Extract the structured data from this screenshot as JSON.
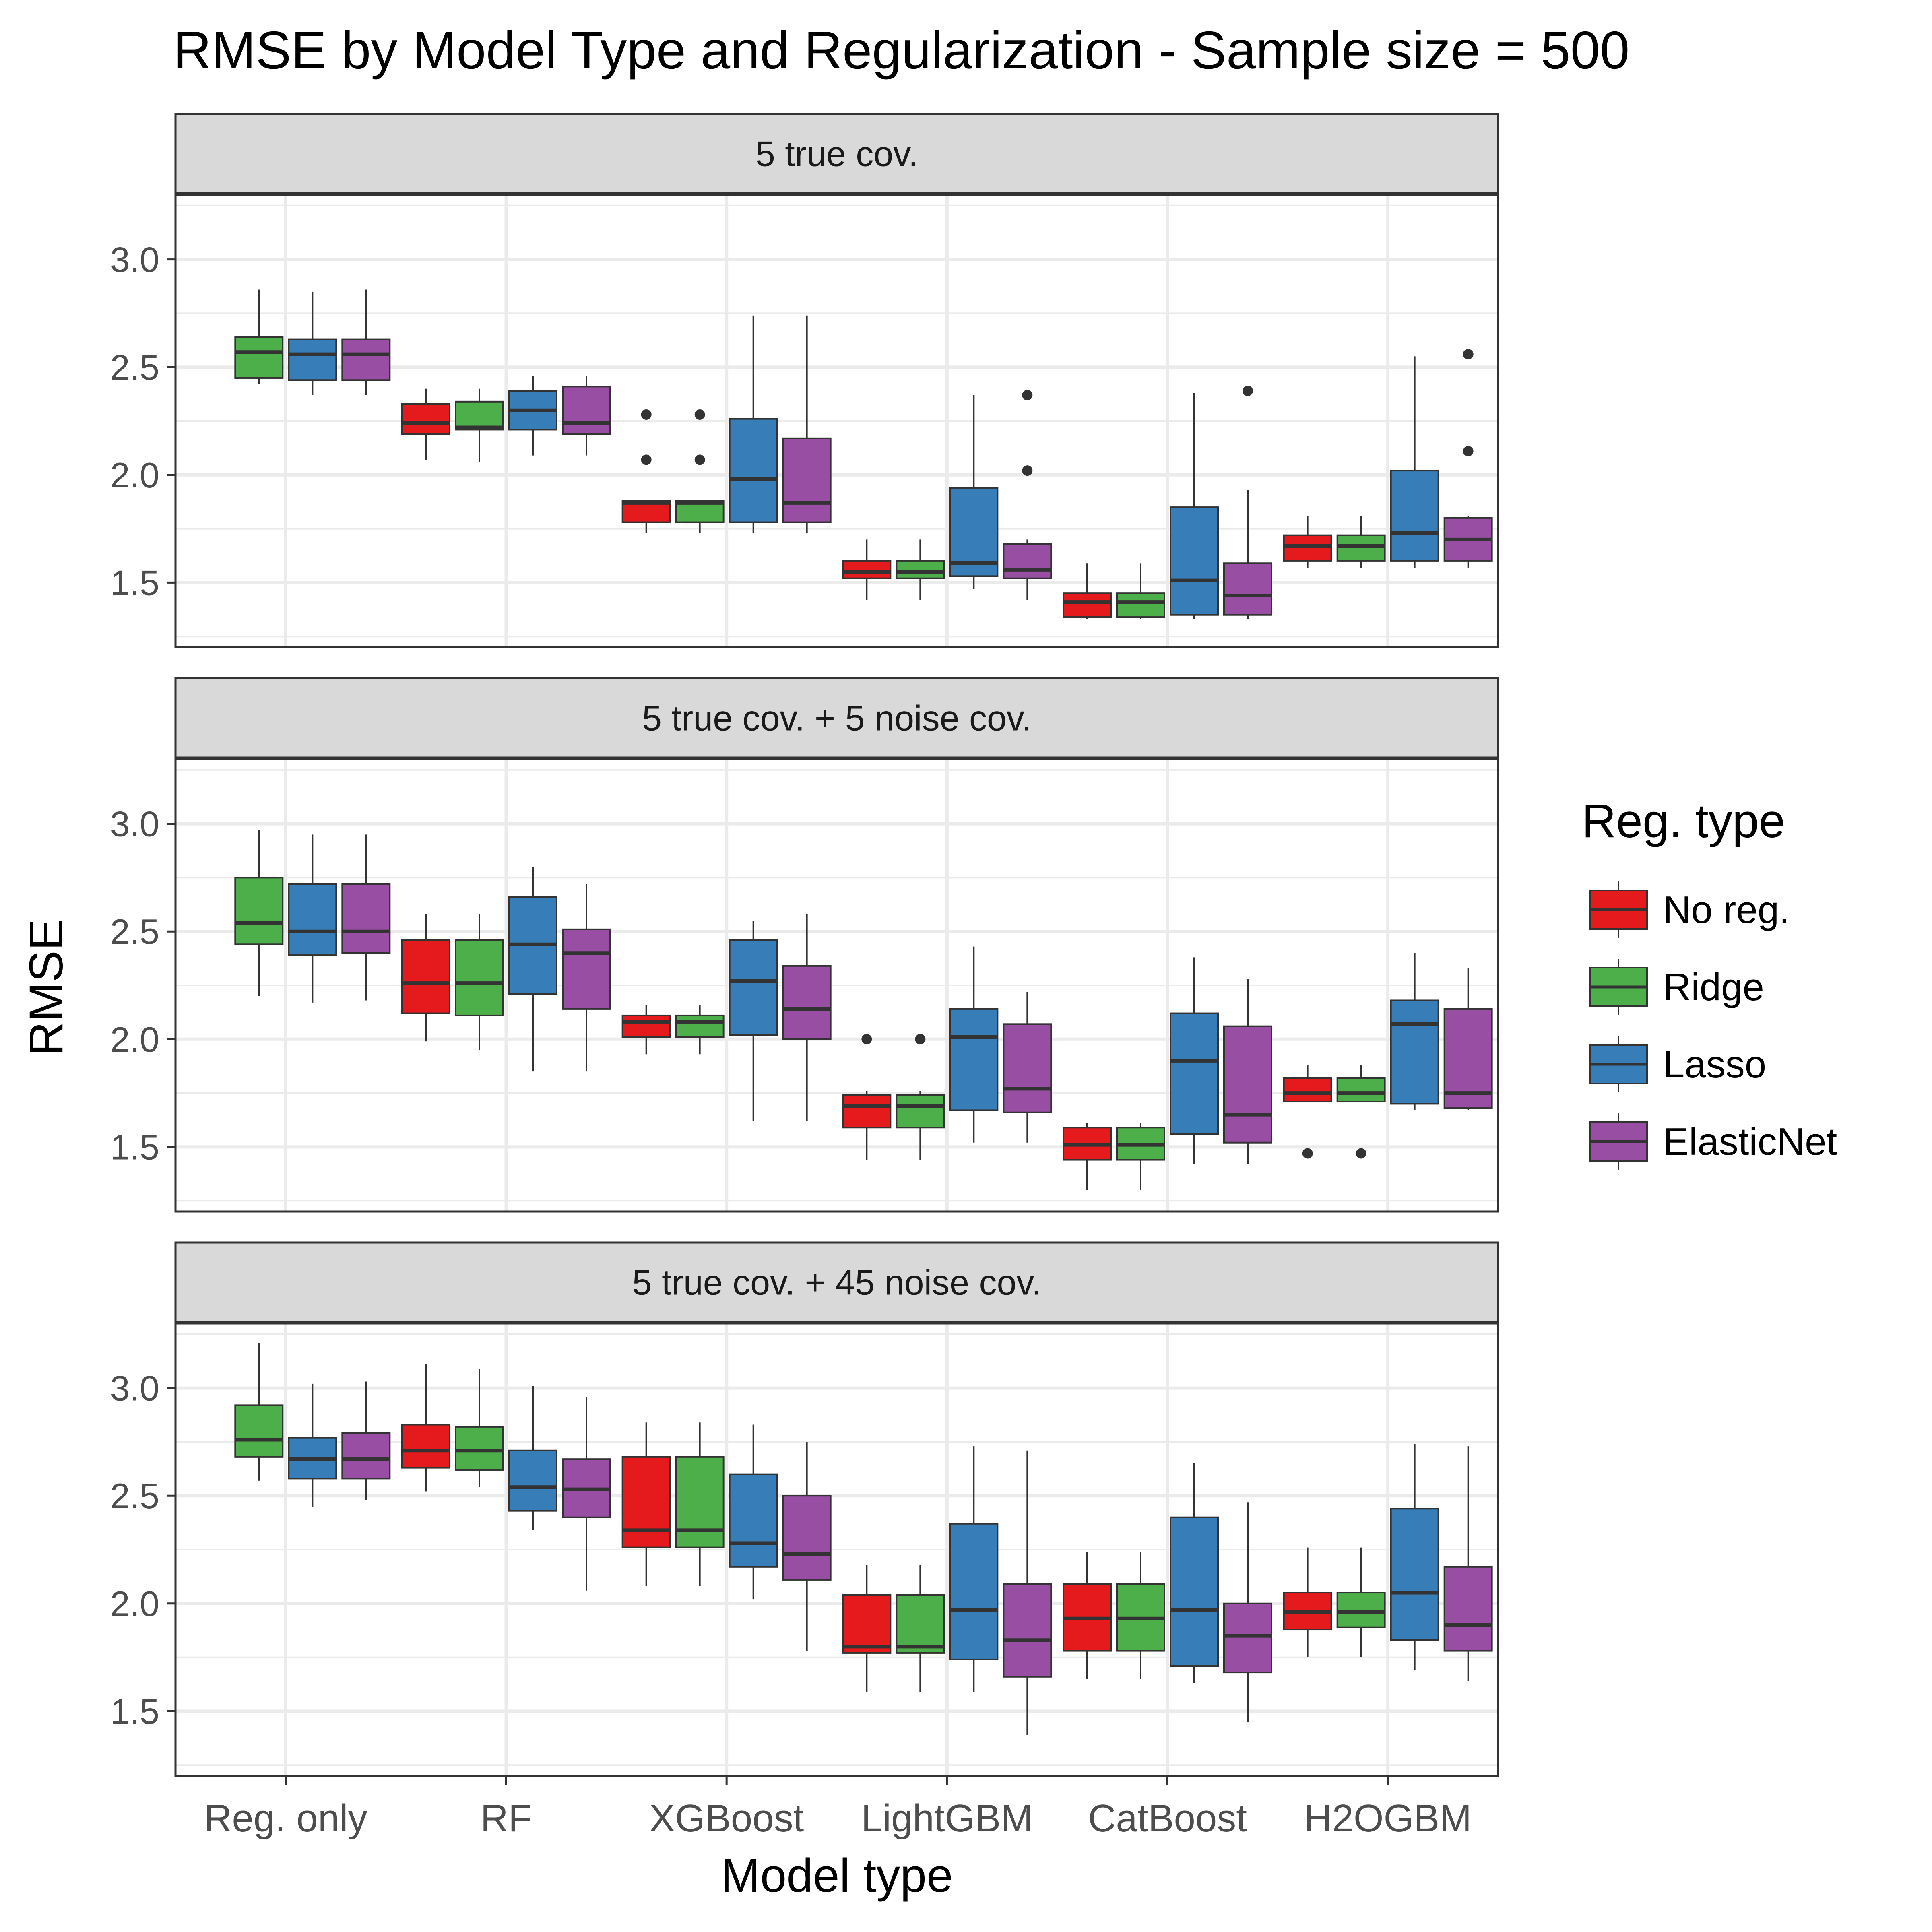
{
  "chart_data": {
    "type": "boxplot",
    "title": "RMSE by Model Type and Regularization - Sample size = 500",
    "xlabel": "Model type",
    "ylabel": "RMSE",
    "categories": [
      "Reg. only",
      "RF",
      "XGBoost",
      "LightGBM",
      "CatBoost",
      "H2OGBM"
    ],
    "ylim": [
      1.2,
      3.3
    ],
    "yticks": [
      1.5,
      2.0,
      2.5,
      3.0
    ],
    "ytick_labels": [
      "1.5",
      "2.0",
      "2.5",
      "3.0"
    ],
    "grid": true,
    "legend": {
      "title": "Reg. type",
      "position": "right",
      "entries": [
        {
          "name": "No reg.",
          "color": "#e41a1c"
        },
        {
          "name": "Ridge",
          "color": "#4daf4a"
        },
        {
          "name": "Lasso",
          "color": "#377eb8"
        },
        {
          "name": "ElasticNet",
          "color": "#984ea3"
        }
      ]
    },
    "panels": [
      {
        "label": "5 true cov.",
        "groups": [
          {
            "category": "Reg. only",
            "series": "Ridge",
            "min": 2.42,
            "q1": 2.45,
            "median": 2.57,
            "q3": 2.64,
            "max": 2.86,
            "outliers": []
          },
          {
            "category": "Reg. only",
            "series": "Lasso",
            "min": 2.37,
            "q1": 2.44,
            "median": 2.56,
            "q3": 2.63,
            "max": 2.85,
            "outliers": []
          },
          {
            "category": "Reg. only",
            "series": "ElasticNet",
            "min": 2.37,
            "q1": 2.44,
            "median": 2.56,
            "q3": 2.63,
            "max": 2.86,
            "outliers": []
          },
          {
            "category": "RF",
            "series": "No reg.",
            "min": 2.07,
            "q1": 2.19,
            "median": 2.24,
            "q3": 2.33,
            "max": 2.4,
            "outliers": []
          },
          {
            "category": "RF",
            "series": "Ridge",
            "min": 2.06,
            "q1": 2.21,
            "median": 2.22,
            "q3": 2.34,
            "max": 2.4,
            "outliers": []
          },
          {
            "category": "RF",
            "series": "Lasso",
            "min": 2.09,
            "q1": 2.21,
            "median": 2.3,
            "q3": 2.39,
            "max": 2.46,
            "outliers": []
          },
          {
            "category": "RF",
            "series": "ElasticNet",
            "min": 2.09,
            "q1": 2.19,
            "median": 2.24,
            "q3": 2.41,
            "max": 2.46,
            "outliers": []
          },
          {
            "category": "XGBoost",
            "series": "No reg.",
            "min": 1.73,
            "q1": 1.78,
            "median": 1.87,
            "q3": 1.88,
            "max": 1.88,
            "outliers": [
              2.07,
              2.28
            ]
          },
          {
            "category": "XGBoost",
            "series": "Ridge",
            "min": 1.73,
            "q1": 1.78,
            "median": 1.87,
            "q3": 1.88,
            "max": 1.88,
            "outliers": [
              2.07,
              2.28
            ]
          },
          {
            "category": "XGBoost",
            "series": "Lasso",
            "min": 1.73,
            "q1": 1.78,
            "median": 1.98,
            "q3": 2.26,
            "max": 2.74,
            "outliers": []
          },
          {
            "category": "XGBoost",
            "series": "ElasticNet",
            "min": 1.73,
            "q1": 1.78,
            "median": 1.87,
            "q3": 2.17,
            "max": 2.74,
            "outliers": []
          },
          {
            "category": "LightGBM",
            "series": "No reg.",
            "min": 1.42,
            "q1": 1.52,
            "median": 1.55,
            "q3": 1.6,
            "max": 1.7,
            "outliers": []
          },
          {
            "category": "LightGBM",
            "series": "Ridge",
            "min": 1.42,
            "q1": 1.52,
            "median": 1.55,
            "q3": 1.6,
            "max": 1.7,
            "outliers": []
          },
          {
            "category": "LightGBM",
            "series": "Lasso",
            "min": 1.47,
            "q1": 1.53,
            "median": 1.59,
            "q3": 1.94,
            "max": 2.37,
            "outliers": []
          },
          {
            "category": "LightGBM",
            "series": "ElasticNet",
            "min": 1.42,
            "q1": 1.52,
            "median": 1.56,
            "q3": 1.68,
            "max": 1.7,
            "outliers": [
              2.02,
              2.37
            ]
          },
          {
            "category": "CatBoost",
            "series": "No reg.",
            "min": 1.33,
            "q1": 1.34,
            "median": 1.41,
            "q3": 1.45,
            "max": 1.59,
            "outliers": []
          },
          {
            "category": "CatBoost",
            "series": "Ridge",
            "min": 1.33,
            "q1": 1.34,
            "median": 1.41,
            "q3": 1.45,
            "max": 1.59,
            "outliers": []
          },
          {
            "category": "CatBoost",
            "series": "Lasso",
            "min": 1.33,
            "q1": 1.35,
            "median": 1.51,
            "q3": 1.85,
            "max": 2.38,
            "outliers": []
          },
          {
            "category": "CatBoost",
            "series": "ElasticNet",
            "min": 1.33,
            "q1": 1.35,
            "median": 1.44,
            "q3": 1.59,
            "max": 1.93,
            "outliers": [
              2.39
            ]
          },
          {
            "category": "H2OGBM",
            "series": "No reg.",
            "min": 1.57,
            "q1": 1.6,
            "median": 1.67,
            "q3": 1.72,
            "max": 1.81,
            "outliers": []
          },
          {
            "category": "H2OGBM",
            "series": "Ridge",
            "min": 1.57,
            "q1": 1.6,
            "median": 1.67,
            "q3": 1.72,
            "max": 1.81,
            "outliers": []
          },
          {
            "category": "H2OGBM",
            "series": "Lasso",
            "min": 1.57,
            "q1": 1.6,
            "median": 1.73,
            "q3": 2.02,
            "max": 2.55,
            "outliers": []
          },
          {
            "category": "H2OGBM",
            "series": "ElasticNet",
            "min": 1.57,
            "q1": 1.6,
            "median": 1.7,
            "q3": 1.8,
            "max": 1.81,
            "outliers": [
              2.11,
              2.56
            ]
          }
        ]
      },
      {
        "label": "5 true cov. + 5 noise cov.",
        "groups": [
          {
            "category": "Reg. only",
            "series": "Ridge",
            "min": 2.2,
            "q1": 2.44,
            "median": 2.54,
            "q3": 2.75,
            "max": 2.97,
            "outliers": []
          },
          {
            "category": "Reg. only",
            "series": "Lasso",
            "min": 2.17,
            "q1": 2.39,
            "median": 2.5,
            "q3": 2.72,
            "max": 2.95,
            "outliers": []
          },
          {
            "category": "Reg. only",
            "series": "ElasticNet",
            "min": 2.18,
            "q1": 2.4,
            "median": 2.5,
            "q3": 2.72,
            "max": 2.95,
            "outliers": []
          },
          {
            "category": "RF",
            "series": "No reg.",
            "min": 1.99,
            "q1": 2.12,
            "median": 2.26,
            "q3": 2.46,
            "max": 2.58,
            "outliers": []
          },
          {
            "category": "RF",
            "series": "Ridge",
            "min": 1.95,
            "q1": 2.11,
            "median": 2.26,
            "q3": 2.46,
            "max": 2.58,
            "outliers": []
          },
          {
            "category": "RF",
            "series": "Lasso",
            "min": 1.85,
            "q1": 2.21,
            "median": 2.44,
            "q3": 2.66,
            "max": 2.8,
            "outliers": []
          },
          {
            "category": "RF",
            "series": "ElasticNet",
            "min": 1.85,
            "q1": 2.14,
            "median": 2.4,
            "q3": 2.51,
            "max": 2.72,
            "outliers": []
          },
          {
            "category": "XGBoost",
            "series": "No reg.",
            "min": 1.93,
            "q1": 2.01,
            "median": 2.08,
            "q3": 2.11,
            "max": 2.16,
            "outliers": []
          },
          {
            "category": "XGBoost",
            "series": "Ridge",
            "min": 1.93,
            "q1": 2.01,
            "median": 2.08,
            "q3": 2.11,
            "max": 2.16,
            "outliers": []
          },
          {
            "category": "XGBoost",
            "series": "Lasso",
            "min": 1.62,
            "q1": 2.02,
            "median": 2.27,
            "q3": 2.46,
            "max": 2.55,
            "outliers": []
          },
          {
            "category": "XGBoost",
            "series": "ElasticNet",
            "min": 1.62,
            "q1": 2.0,
            "median": 2.14,
            "q3": 2.34,
            "max": 2.58,
            "outliers": []
          },
          {
            "category": "LightGBM",
            "series": "No reg.",
            "min": 1.44,
            "q1": 1.59,
            "median": 1.69,
            "q3": 1.74,
            "max": 1.76,
            "outliers": [
              2.0
            ]
          },
          {
            "category": "LightGBM",
            "series": "Ridge",
            "min": 1.44,
            "q1": 1.59,
            "median": 1.69,
            "q3": 1.74,
            "max": 1.76,
            "outliers": [
              2.0
            ]
          },
          {
            "category": "LightGBM",
            "series": "Lasso",
            "min": 1.52,
            "q1": 1.67,
            "median": 2.01,
            "q3": 2.14,
            "max": 2.43,
            "outliers": []
          },
          {
            "category": "LightGBM",
            "series": "ElasticNet",
            "min": 1.52,
            "q1": 1.66,
            "median": 1.77,
            "q3": 2.07,
            "max": 2.22,
            "outliers": []
          },
          {
            "category": "CatBoost",
            "series": "No reg.",
            "min": 1.3,
            "q1": 1.44,
            "median": 1.51,
            "q3": 1.59,
            "max": 1.61,
            "outliers": []
          },
          {
            "category": "CatBoost",
            "series": "Ridge",
            "min": 1.3,
            "q1": 1.44,
            "median": 1.51,
            "q3": 1.59,
            "max": 1.61,
            "outliers": []
          },
          {
            "category": "CatBoost",
            "series": "Lasso",
            "min": 1.42,
            "q1": 1.56,
            "median": 1.9,
            "q3": 2.12,
            "max": 2.38,
            "outliers": []
          },
          {
            "category": "CatBoost",
            "series": "ElasticNet",
            "min": 1.42,
            "q1": 1.52,
            "median": 1.65,
            "q3": 2.06,
            "max": 2.28,
            "outliers": []
          },
          {
            "category": "H2OGBM",
            "series": "No reg.",
            "min": 1.71,
            "q1": 1.71,
            "median": 1.75,
            "q3": 1.82,
            "max": 1.88,
            "outliers": [
              1.47
            ]
          },
          {
            "category": "H2OGBM",
            "series": "Ridge",
            "min": 1.71,
            "q1": 1.71,
            "median": 1.75,
            "q3": 1.82,
            "max": 1.88,
            "outliers": [
              1.47
            ]
          },
          {
            "category": "H2OGBM",
            "series": "Lasso",
            "min": 1.67,
            "q1": 1.7,
            "median": 2.07,
            "q3": 2.18,
            "max": 2.4,
            "outliers": []
          },
          {
            "category": "H2OGBM",
            "series": "ElasticNet",
            "min": 1.67,
            "q1": 1.68,
            "median": 1.75,
            "q3": 2.14,
            "max": 2.33,
            "outliers": []
          }
        ]
      },
      {
        "label": "5 true cov. + 45 noise cov.",
        "groups": [
          {
            "category": "Reg. only",
            "series": "Ridge",
            "min": 2.57,
            "q1": 2.68,
            "median": 2.76,
            "q3": 2.92,
            "max": 3.21,
            "outliers": []
          },
          {
            "category": "Reg. only",
            "series": "Lasso",
            "min": 2.45,
            "q1": 2.58,
            "median": 2.67,
            "q3": 2.77,
            "max": 3.02,
            "outliers": []
          },
          {
            "category": "Reg. only",
            "series": "ElasticNet",
            "min": 2.48,
            "q1": 2.58,
            "median": 2.67,
            "q3": 2.79,
            "max": 3.03,
            "outliers": []
          },
          {
            "category": "RF",
            "series": "No reg.",
            "min": 2.52,
            "q1": 2.63,
            "median": 2.71,
            "q3": 2.83,
            "max": 3.11,
            "outliers": []
          },
          {
            "category": "RF",
            "series": "Ridge",
            "min": 2.54,
            "q1": 2.62,
            "median": 2.71,
            "q3": 2.82,
            "max": 3.09,
            "outliers": []
          },
          {
            "category": "RF",
            "series": "Lasso",
            "min": 2.34,
            "q1": 2.43,
            "median": 2.54,
            "q3": 2.71,
            "max": 3.01,
            "outliers": []
          },
          {
            "category": "RF",
            "series": "ElasticNet",
            "min": 2.06,
            "q1": 2.4,
            "median": 2.53,
            "q3": 2.67,
            "max": 2.96,
            "outliers": []
          },
          {
            "category": "XGBoost",
            "series": "No reg.",
            "min": 2.08,
            "q1": 2.26,
            "median": 2.34,
            "q3": 2.68,
            "max": 2.84,
            "outliers": []
          },
          {
            "category": "XGBoost",
            "series": "Ridge",
            "min": 2.08,
            "q1": 2.26,
            "median": 2.34,
            "q3": 2.68,
            "max": 2.84,
            "outliers": []
          },
          {
            "category": "XGBoost",
            "series": "Lasso",
            "min": 2.02,
            "q1": 2.17,
            "median": 2.28,
            "q3": 2.6,
            "max": 2.83,
            "outliers": []
          },
          {
            "category": "XGBoost",
            "series": "ElasticNet",
            "min": 1.78,
            "q1": 2.11,
            "median": 2.23,
            "q3": 2.5,
            "max": 2.75,
            "outliers": []
          },
          {
            "category": "LightGBM",
            "series": "No reg.",
            "min": 1.59,
            "q1": 1.77,
            "median": 1.8,
            "q3": 2.04,
            "max": 2.18,
            "outliers": []
          },
          {
            "category": "LightGBM",
            "series": "Ridge",
            "min": 1.59,
            "q1": 1.77,
            "median": 1.8,
            "q3": 2.04,
            "max": 2.18,
            "outliers": []
          },
          {
            "category": "LightGBM",
            "series": "Lasso",
            "min": 1.59,
            "q1": 1.74,
            "median": 1.97,
            "q3": 2.37,
            "max": 2.73,
            "outliers": []
          },
          {
            "category": "LightGBM",
            "series": "ElasticNet",
            "min": 1.39,
            "q1": 1.66,
            "median": 1.83,
            "q3": 2.09,
            "max": 2.71,
            "outliers": []
          },
          {
            "category": "CatBoost",
            "series": "No reg.",
            "min": 1.65,
            "q1": 1.78,
            "median": 1.93,
            "q3": 2.09,
            "max": 2.24,
            "outliers": []
          },
          {
            "category": "CatBoost",
            "series": "Ridge",
            "min": 1.65,
            "q1": 1.78,
            "median": 1.93,
            "q3": 2.09,
            "max": 2.24,
            "outliers": []
          },
          {
            "category": "CatBoost",
            "series": "Lasso",
            "min": 1.63,
            "q1": 1.71,
            "median": 1.97,
            "q3": 2.4,
            "max": 2.65,
            "outliers": []
          },
          {
            "category": "CatBoost",
            "series": "ElasticNet",
            "min": 1.45,
            "q1": 1.68,
            "median": 1.85,
            "q3": 2.0,
            "max": 2.47,
            "outliers": []
          },
          {
            "category": "H2OGBM",
            "series": "No reg.",
            "min": 1.75,
            "q1": 1.88,
            "median": 1.96,
            "q3": 2.05,
            "max": 2.26,
            "outliers": []
          },
          {
            "category": "H2OGBM",
            "series": "Ridge",
            "min": 1.75,
            "q1": 1.89,
            "median": 1.96,
            "q3": 2.05,
            "max": 2.26,
            "outliers": []
          },
          {
            "category": "H2OGBM",
            "series": "Lasso",
            "min": 1.69,
            "q1": 1.83,
            "median": 2.05,
            "q3": 2.44,
            "max": 2.74,
            "outliers": []
          },
          {
            "category": "H2OGBM",
            "series": "ElasticNet",
            "min": 1.64,
            "q1": 1.78,
            "median": 1.9,
            "q3": 2.17,
            "max": 2.73,
            "outliers": []
          }
        ]
      }
    ]
  }
}
